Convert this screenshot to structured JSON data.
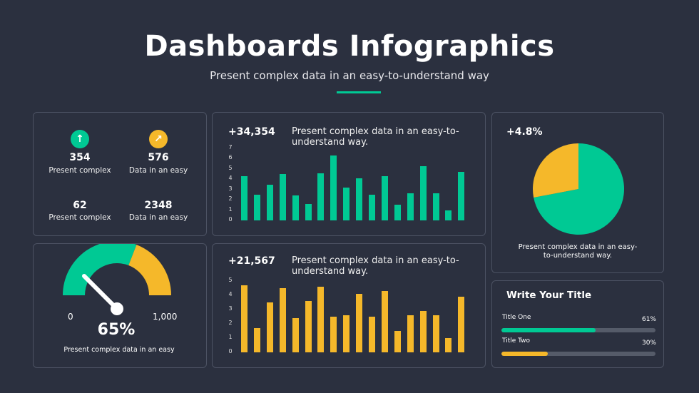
{
  "header": {
    "title": "Dashboards Infographics",
    "subtitle": "Present complex data in an easy-to-understand way"
  },
  "colors": {
    "background": "#2b303f",
    "green": "#00c994",
    "yellow": "#f5b82a",
    "track": "#555b69"
  },
  "stats": [
    {
      "value": "354",
      "label": "Present complex",
      "icon": "arrow-up-icon",
      "color": "#00c994"
    },
    {
      "value": "576",
      "label": "Data in an easy",
      "icon": "arrow-up-right-icon",
      "color": "#f5b82a"
    },
    {
      "value": "62",
      "label": "Present complex"
    },
    {
      "value": "2348",
      "label": "Data in an easy"
    }
  ],
  "gauge": {
    "min_label": "0",
    "max_label": "1,000",
    "value_label": "65%",
    "value": 65,
    "caption": "Present complex data in an easy"
  },
  "chart_data": [
    {
      "type": "bar",
      "title": "+34,354",
      "description": "Present complex data in an easy-to-understand way.",
      "ylim": [
        0,
        7
      ],
      "yticks": [
        "0",
        "1",
        "2",
        "3",
        "4",
        "5",
        "6",
        "7"
      ],
      "color": "#00c994",
      "values": [
        4.3,
        2.5,
        3.5,
        4.5,
        2.4,
        1.6,
        4.6,
        6.3,
        3.2,
        4.1,
        2.5,
        4.3,
        1.5,
        2.6,
        5.3,
        2.6,
        1.0,
        4.7
      ]
    },
    {
      "type": "bar",
      "title": "+21,567",
      "description": "Present complex data in an easy-to-understand way.",
      "ylim": [
        0,
        5
      ],
      "yticks": [
        "0",
        "1",
        "2",
        "3",
        "4",
        "5"
      ],
      "color": "#f5b82a",
      "values": [
        4.7,
        1.7,
        3.5,
        4.5,
        2.4,
        3.6,
        4.6,
        2.5,
        2.6,
        4.1,
        2.5,
        4.3,
        1.5,
        2.6,
        2.9,
        2.6,
        1.0,
        3.9
      ]
    },
    {
      "type": "pie",
      "title": "+4.8%",
      "description": "Present complex data in an easy-to-understand way.",
      "slices": [
        {
          "value": 72,
          "color": "#00c994"
        },
        {
          "value": 28,
          "color": "#f5b82a"
        }
      ]
    }
  ],
  "progress": {
    "title": "Write Your Title",
    "items": [
      {
        "label": "Title One",
        "value_label": "61%",
        "value": 61,
        "color": "#00c994"
      },
      {
        "label": "Title Two",
        "value_label": "30%",
        "value": 30,
        "color": "#f5b82a"
      }
    ]
  }
}
